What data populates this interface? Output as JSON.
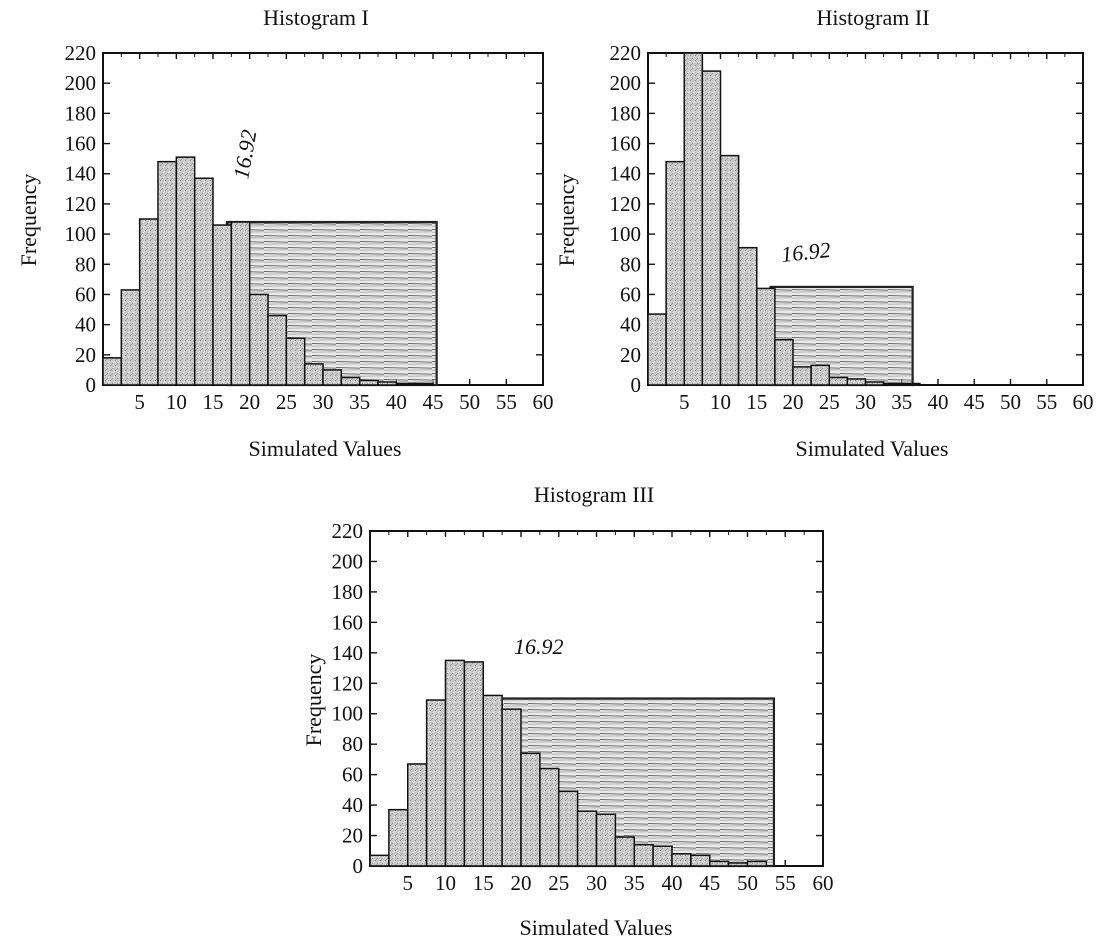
{
  "chart_data": [
    {
      "type": "bar",
      "title": "Histogram I",
      "xlabel": "Simulated Values",
      "ylabel": "Frequency",
      "xlim": [
        0,
        60
      ],
      "ylim": [
        0,
        220
      ],
      "xticks": [
        5,
        10,
        15,
        20,
        25,
        30,
        35,
        40,
        45,
        50,
        55,
        60
      ],
      "yticks": [
        0,
        20,
        40,
        60,
        80,
        100,
        120,
        140,
        160,
        180,
        200,
        220
      ],
      "bin_width": 2.5,
      "bins": [
        {
          "x": 1.25,
          "value": 18
        },
        {
          "x": 3.75,
          "value": 63
        },
        {
          "x": 6.25,
          "value": 110
        },
        {
          "x": 8.75,
          "value": 148
        },
        {
          "x": 11.25,
          "value": 151
        },
        {
          "x": 13.75,
          "value": 137
        },
        {
          "x": 16.25,
          "value": 106
        },
        {
          "x": 18.75,
          "value": 108
        },
        {
          "x": 21.25,
          "value": 60
        },
        {
          "x": 23.75,
          "value": 46
        },
        {
          "x": 26.25,
          "value": 31
        },
        {
          "x": 28.75,
          "value": 14
        },
        {
          "x": 31.25,
          "value": 10
        },
        {
          "x": 33.75,
          "value": 5
        },
        {
          "x": 36.25,
          "value": 3
        },
        {
          "x": 38.75,
          "value": 2
        },
        {
          "x": 41.25,
          "value": 1
        },
        {
          "x": 43.75,
          "value": 1
        }
      ],
      "annotation": {
        "text": "16.92",
        "x": 16.92,
        "y": 150
      },
      "shaded_region": {
        "x0": 16.92,
        "x1": 45.5,
        "y": 108
      },
      "grid": false,
      "legend": "none"
    },
    {
      "type": "bar",
      "title": "Histogram II",
      "xlabel": "Simulated Values",
      "ylabel": "Frequency",
      "xlim": [
        0,
        60
      ],
      "ylim": [
        0,
        220
      ],
      "xticks": [
        5,
        10,
        15,
        20,
        25,
        30,
        35,
        40,
        45,
        50,
        55,
        60
      ],
      "yticks": [
        0,
        20,
        40,
        60,
        80,
        100,
        120,
        140,
        160,
        180,
        200,
        220
      ],
      "bin_width": 2.5,
      "bins": [
        {
          "x": 1.25,
          "value": 47
        },
        {
          "x": 3.75,
          "value": 148
        },
        {
          "x": 6.25,
          "value": 220
        },
        {
          "x": 8.75,
          "value": 208
        },
        {
          "x": 11.25,
          "value": 152
        },
        {
          "x": 13.75,
          "value": 91
        },
        {
          "x": 16.25,
          "value": 64
        },
        {
          "x": 18.75,
          "value": 30
        },
        {
          "x": 21.25,
          "value": 12
        },
        {
          "x": 23.75,
          "value": 13
        },
        {
          "x": 26.25,
          "value": 5
        },
        {
          "x": 28.75,
          "value": 4
        },
        {
          "x": 31.25,
          "value": 2
        },
        {
          "x": 33.75,
          "value": 1
        },
        {
          "x": 36.25,
          "value": 1
        }
      ],
      "annotation": {
        "text": "16.92",
        "x": 16.92,
        "y": 85
      },
      "shaded_region": {
        "x0": 16.92,
        "x1": 36.5,
        "y": 65
      },
      "grid": false,
      "legend": "none"
    },
    {
      "type": "bar",
      "title": "Histogram III",
      "xlabel": "Simulated Values",
      "ylabel": "Frequency",
      "xlim": [
        0,
        60
      ],
      "ylim": [
        0,
        220
      ],
      "xticks": [
        5,
        10,
        15,
        20,
        25,
        30,
        35,
        40,
        45,
        50,
        55,
        60
      ],
      "yticks": [
        0,
        20,
        40,
        60,
        80,
        100,
        120,
        140,
        160,
        180,
        200,
        220
      ],
      "bin_width": 2.5,
      "bins": [
        {
          "x": 1.25,
          "value": 7
        },
        {
          "x": 3.75,
          "value": 37
        },
        {
          "x": 6.25,
          "value": 67
        },
        {
          "x": 8.75,
          "value": 109
        },
        {
          "x": 11.25,
          "value": 135
        },
        {
          "x": 13.75,
          "value": 134
        },
        {
          "x": 16.25,
          "value": 112
        },
        {
          "x": 18.75,
          "value": 103
        },
        {
          "x": 21.25,
          "value": 74
        },
        {
          "x": 23.75,
          "value": 64
        },
        {
          "x": 26.25,
          "value": 49
        },
        {
          "x": 28.75,
          "value": 36
        },
        {
          "x": 31.25,
          "value": 34
        },
        {
          "x": 33.75,
          "value": 19
        },
        {
          "x": 36.25,
          "value": 14
        },
        {
          "x": 38.75,
          "value": 13
        },
        {
          "x": 41.25,
          "value": 8
        },
        {
          "x": 43.75,
          "value": 7
        },
        {
          "x": 46.25,
          "value": 3
        },
        {
          "x": 48.75,
          "value": 2
        },
        {
          "x": 51.25,
          "value": 3
        }
      ],
      "annotation": {
        "text": "16.92",
        "x": 16.92,
        "y": 140
      },
      "shaded_region": {
        "x0": 16.92,
        "x1": 53.5,
        "y": 110
      },
      "grid": false,
      "legend": "none"
    }
  ]
}
